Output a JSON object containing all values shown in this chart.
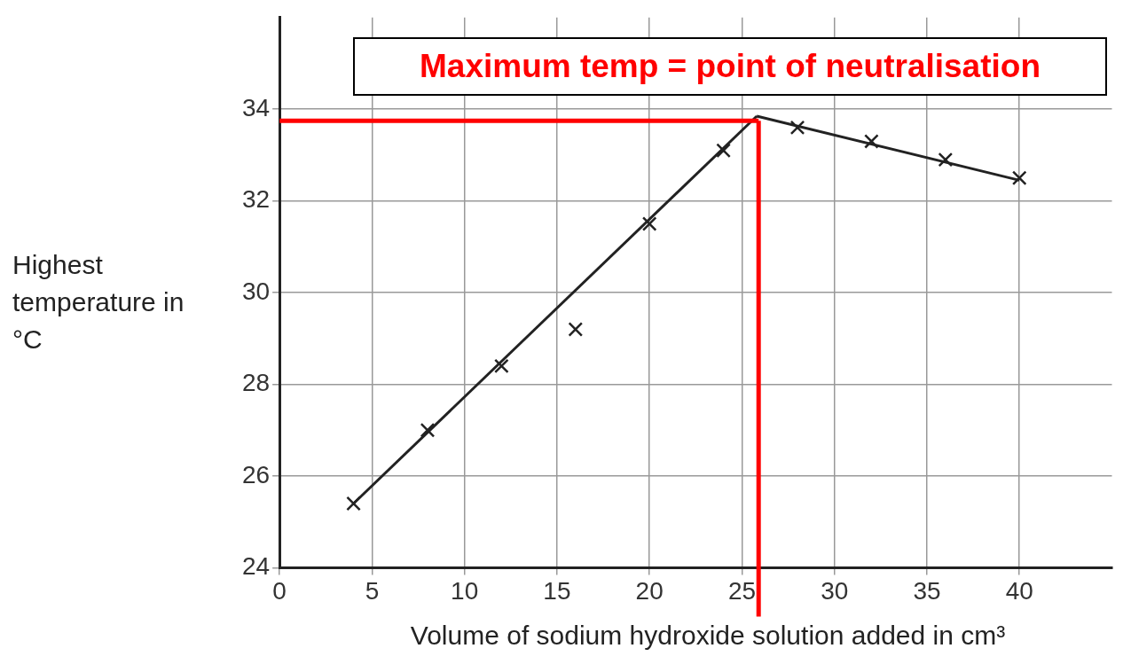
{
  "chart_data": {
    "type": "scatter",
    "xlabel": "Volume of sodium hydroxide solution added in cm³",
    "ylabel": "Highest temperature in °C",
    "annotations": [
      "Maximum temp = point of neutralisation"
    ],
    "xlim": [
      0,
      45
    ],
    "xticks": [
      0,
      5,
      10,
      15,
      20,
      25,
      30,
      35,
      40
    ],
    "ylim": [
      24,
      36
    ],
    "yticks": [
      24,
      26,
      28,
      30,
      32,
      34
    ],
    "grid": true,
    "legend": false,
    "series": [
      {
        "marker": "cross",
        "color": "#222222",
        "x": [
          4,
          8,
          12,
          16,
          20,
          24,
          28,
          32,
          36,
          40
        ],
        "values": [
          25.4,
          27,
          28.4,
          29.2,
          31.5,
          33.1,
          33.6,
          33.3,
          32.9,
          32.5
        ]
      },
      {
        "type": "line",
        "marker": "none",
        "color": "#222222",
        "x": [
          4,
          25.8
        ],
        "values": [
          25.4,
          33.85
        ]
      },
      {
        "type": "line",
        "marker": "none",
        "color": "#222222",
        "x": [
          25.8,
          40
        ],
        "values": [
          33.85,
          32.45
        ]
      }
    ],
    "ref_lines": [
      {
        "axis": "y",
        "value": 33.75,
        "color": "#ff0000"
      },
      {
        "axis": "x",
        "value": 25.9,
        "color": "#ff0000"
      }
    ]
  }
}
